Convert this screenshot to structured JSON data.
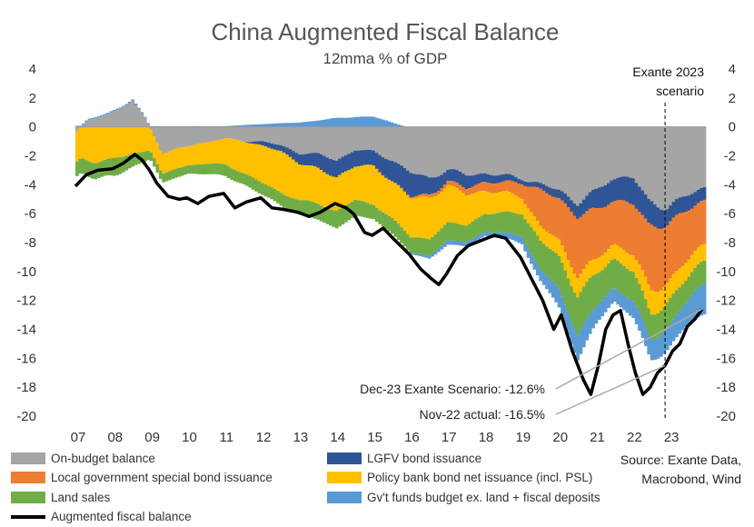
{
  "chart_data": {
    "type": "area",
    "title": "China Augmented Fiscal Balance",
    "subtitle": "12mma % of GDP",
    "ylim": [
      -20,
      4
    ],
    "y_ticks": [
      4,
      2,
      0,
      -2,
      -4,
      -6,
      -8,
      -10,
      -12,
      -14,
      -16,
      -18,
      -20
    ],
    "x_tick_labels": [
      "07",
      "08",
      "09",
      "10",
      "11",
      "12",
      "13",
      "14",
      "15",
      "16",
      "17",
      "18",
      "19",
      "20",
      "21",
      "22",
      "23"
    ],
    "x_start": 2007.0,
    "x_end": 2024.0,
    "scenario_label_line1": "Exante 2023",
    "scenario_label_line2": "scenario",
    "scenario_start": 2022.9,
    "annotations": [
      {
        "text": "Dec-23 Exante Scenario: -12.6%",
        "x": 2023.9,
        "y": -12.6
      },
      {
        "text": "Nov-22 actual: -16.5%",
        "x": 2022.9,
        "y": -16.5
      }
    ],
    "series": [
      {
        "name": "On-budget balance",
        "color": "#A5A5A5",
        "keyframes": [
          [
            2007.0,
            -0.3
          ],
          [
            2007.3,
            0.5
          ],
          [
            2007.8,
            0.8
          ],
          [
            2008.2,
            1.3
          ],
          [
            2008.5,
            1.8
          ],
          [
            2008.8,
            0.8
          ],
          [
            2009.0,
            -0.2
          ],
          [
            2009.3,
            -1.8
          ],
          [
            2009.8,
            -1.5
          ],
          [
            2010.2,
            -1.2
          ],
          [
            2010.6,
            -1.0
          ],
          [
            2011.0,
            -0.8
          ],
          [
            2011.5,
            -1.0
          ],
          [
            2012.0,
            -1.0
          ],
          [
            2012.5,
            -1.3
          ],
          [
            2013.0,
            -1.8
          ],
          [
            2013.5,
            -1.9
          ],
          [
            2014.0,
            -2.3
          ],
          [
            2014.5,
            -1.6
          ],
          [
            2015.0,
            -1.7
          ],
          [
            2015.5,
            -2.3
          ],
          [
            2016.0,
            -3.2
          ],
          [
            2016.5,
            -3.5
          ],
          [
            2017.0,
            -3.0
          ],
          [
            2017.5,
            -3.3
          ],
          [
            2018.0,
            -3.2
          ],
          [
            2018.5,
            -3.4
          ],
          [
            2019.0,
            -3.5
          ],
          [
            2019.5,
            -4.0
          ],
          [
            2020.0,
            -4.4
          ],
          [
            2020.5,
            -5.2
          ],
          [
            2021.0,
            -4.5
          ],
          [
            2021.4,
            -3.6
          ],
          [
            2021.8,
            -3.4
          ],
          [
            2022.0,
            -3.5
          ],
          [
            2022.4,
            -5.2
          ],
          [
            2022.9,
            -5.5
          ],
          [
            2023.3,
            -5.0
          ],
          [
            2023.9,
            -4.2
          ]
        ]
      },
      {
        "name": "LGFV bond issuance",
        "color": "#2F5597",
        "keyframes": [
          [
            2007.0,
            0
          ],
          [
            2011.5,
            0
          ],
          [
            2012.0,
            -0.3
          ],
          [
            2012.5,
            -0.4
          ],
          [
            2013.0,
            -0.7
          ],
          [
            2013.5,
            -1.0
          ],
          [
            2014.0,
            -1.2
          ],
          [
            2014.5,
            -1.1
          ],
          [
            2015.0,
            -1.0
          ],
          [
            2015.5,
            -1.5
          ],
          [
            2016.0,
            -1.6
          ],
          [
            2016.5,
            -1.2
          ],
          [
            2017.0,
            -0.8
          ],
          [
            2017.5,
            -0.9
          ],
          [
            2018.0,
            -0.6
          ],
          [
            2018.5,
            -0.5
          ],
          [
            2019.0,
            -0.3
          ],
          [
            2019.5,
            -0.4
          ],
          [
            2020.0,
            -0.6
          ],
          [
            2020.5,
            -0.9
          ],
          [
            2021.0,
            -1.3
          ],
          [
            2021.5,
            -1.6
          ],
          [
            2022.0,
            -1.8
          ],
          [
            2022.5,
            -1.6
          ],
          [
            2022.9,
            -1.2
          ],
          [
            2023.5,
            -1.0
          ],
          [
            2023.9,
            -0.9
          ]
        ]
      },
      {
        "name": "Local government special bond issuance",
        "color": "#ED7D31",
        "keyframes": [
          [
            2007.0,
            0
          ],
          [
            2015.5,
            0
          ],
          [
            2016.0,
            -0.1
          ],
          [
            2017.0,
            -0.3
          ],
          [
            2018.0,
            -0.6
          ],
          [
            2018.5,
            -0.7
          ],
          [
            2019.0,
            -1.0
          ],
          [
            2019.5,
            -2.5
          ],
          [
            2020.0,
            -3.0
          ],
          [
            2020.5,
            -4.0
          ],
          [
            2021.0,
            -3.5
          ],
          [
            2021.5,
            -3.0
          ],
          [
            2022.0,
            -3.5
          ],
          [
            2022.5,
            -4.5
          ],
          [
            2022.9,
            -4.0
          ],
          [
            2023.5,
            -3.5
          ],
          [
            2023.9,
            -3.0
          ]
        ]
      },
      {
        "name": "Policy bank bond net issuance (incl. PSL)",
        "color": "#FFC000",
        "keyframes": [
          [
            2007.0,
            -2.2
          ],
          [
            2007.5,
            -2.4
          ],
          [
            2008.0,
            -2.2
          ],
          [
            2008.5,
            -1.9
          ],
          [
            2009.0,
            -1.5
          ],
          [
            2009.5,
            -1.4
          ],
          [
            2010.0,
            -1.3
          ],
          [
            2010.5,
            -1.5
          ],
          [
            2011.0,
            -1.8
          ],
          [
            2011.5,
            -2.2
          ],
          [
            2012.0,
            -2.6
          ],
          [
            2012.5,
            -2.8
          ],
          [
            2013.0,
            -2.6
          ],
          [
            2013.5,
            -2.4
          ],
          [
            2014.0,
            -2.3
          ],
          [
            2014.5,
            -2.4
          ],
          [
            2015.0,
            -2.6
          ],
          [
            2015.5,
            -2.6
          ],
          [
            2016.0,
            -2.7
          ],
          [
            2016.5,
            -2.8
          ],
          [
            2017.0,
            -2.6
          ],
          [
            2017.5,
            -2.1
          ],
          [
            2018.0,
            -1.6
          ],
          [
            2018.5,
            -1.4
          ],
          [
            2019.0,
            -1.1
          ],
          [
            2019.5,
            -1.0
          ],
          [
            2020.0,
            -1.1
          ],
          [
            2020.5,
            -1.4
          ],
          [
            2021.0,
            -1.0
          ],
          [
            2021.5,
            -1.0
          ],
          [
            2022.0,
            -1.2
          ],
          [
            2022.5,
            -1.6
          ],
          [
            2022.9,
            -1.4
          ],
          [
            2023.5,
            -1.2
          ],
          [
            2023.9,
            -1.1
          ]
        ]
      },
      {
        "name": "Land sales",
        "color": "#70AD47",
        "keyframes": [
          [
            2007.0,
            -1.0
          ],
          [
            2008.0,
            -1.2
          ],
          [
            2009.0,
            -0.6
          ],
          [
            2010.0,
            -0.6
          ],
          [
            2011.0,
            -0.8
          ],
          [
            2012.0,
            -0.8
          ],
          [
            2013.0,
            -1.0
          ],
          [
            2014.0,
            -1.2
          ],
          [
            2015.0,
            -1.0
          ],
          [
            2016.0,
            -1.1
          ],
          [
            2017.0,
            -1.2
          ],
          [
            2018.0,
            -1.2
          ],
          [
            2019.0,
            -1.6
          ],
          [
            2020.0,
            -2.3
          ],
          [
            2020.5,
            -2.6
          ],
          [
            2021.0,
            -2.3
          ],
          [
            2021.5,
            -2.0
          ],
          [
            2022.0,
            -2.0
          ],
          [
            2022.5,
            -1.8
          ],
          [
            2022.9,
            -1.7
          ],
          [
            2023.5,
            -1.6
          ],
          [
            2023.9,
            -1.6
          ]
        ]
      },
      {
        "name": "Gv't funds budget ex. land + fiscal deposits",
        "color": "#5B9BD5",
        "keyframes": [
          [
            2007.0,
            0.08
          ],
          [
            2008.5,
            0.1
          ],
          [
            2009.0,
            0.05
          ],
          [
            2011.0,
            0.05
          ],
          [
            2012.0,
            0.2
          ],
          [
            2013.0,
            0.3
          ],
          [
            2014.0,
            0.6
          ],
          [
            2014.5,
            0.7
          ],
          [
            2015.0,
            0.7
          ],
          [
            2015.5,
            0.3
          ],
          [
            2016.0,
            -0.1
          ],
          [
            2016.5,
            -0.2
          ],
          [
            2017.0,
            -0.3
          ],
          [
            2017.5,
            -0.3
          ],
          [
            2018.0,
            -0.3
          ],
          [
            2019.0,
            -0.5
          ],
          [
            2020.0,
            -1.2
          ],
          [
            2020.5,
            -1.8
          ],
          [
            2021.0,
            -1.2
          ],
          [
            2021.5,
            -0.9
          ],
          [
            2022.0,
            -1.2
          ],
          [
            2022.5,
            -1.4
          ],
          [
            2022.9,
            -1.5
          ],
          [
            2023.5,
            -1.7
          ],
          [
            2023.9,
            -2.1
          ]
        ]
      }
    ],
    "total_line": {
      "name": "Augmented fiscal balance",
      "color": "#000000",
      "keyframes": [
        [
          2007.0,
          -4.1
        ],
        [
          2007.3,
          -3.3
        ],
        [
          2007.6,
          -3.0
        ],
        [
          2008.0,
          -2.9
        ],
        [
          2008.3,
          -2.5
        ],
        [
          2008.6,
          -1.9
        ],
        [
          2008.8,
          -2.3
        ],
        [
          2009.0,
          -3.0
        ],
        [
          2009.2,
          -3.9
        ],
        [
          2009.5,
          -4.8
        ],
        [
          2009.8,
          -5.0
        ],
        [
          2010.0,
          -4.9
        ],
        [
          2010.3,
          -5.3
        ],
        [
          2010.6,
          -4.8
        ],
        [
          2011.0,
          -4.6
        ],
        [
          2011.3,
          -5.6
        ],
        [
          2011.6,
          -5.2
        ],
        [
          2012.0,
          -4.9
        ],
        [
          2012.3,
          -5.6
        ],
        [
          2012.6,
          -5.7
        ],
        [
          2013.0,
          -5.9
        ],
        [
          2013.3,
          -6.2
        ],
        [
          2013.6,
          -5.9
        ],
        [
          2014.0,
          -5.3
        ],
        [
          2014.3,
          -5.6
        ],
        [
          2014.5,
          -6.0
        ],
        [
          2014.8,
          -7.3
        ],
        [
          2015.0,
          -7.5
        ],
        [
          2015.3,
          -7.0
        ],
        [
          2015.6,
          -7.8
        ],
        [
          2016.0,
          -8.8
        ],
        [
          2016.3,
          -9.8
        ],
        [
          2016.6,
          -10.5
        ],
        [
          2016.8,
          -10.9
        ],
        [
          2017.0,
          -10.2
        ],
        [
          2017.3,
          -8.9
        ],
        [
          2017.6,
          -8.2
        ],
        [
          2018.0,
          -7.8
        ],
        [
          2018.3,
          -7.5
        ],
        [
          2018.6,
          -7.7
        ],
        [
          2019.0,
          -9.0
        ],
        [
          2019.3,
          -10.5
        ],
        [
          2019.6,
          -12.0
        ],
        [
          2019.9,
          -14.0
        ],
        [
          2020.1,
          -13.0
        ],
        [
          2020.4,
          -15.5
        ],
        [
          2020.7,
          -17.5
        ],
        [
          2020.9,
          -18.5
        ],
        [
          2021.1,
          -16.5
        ],
        [
          2021.3,
          -14.0
        ],
        [
          2021.5,
          -13.0
        ],
        [
          2021.7,
          -12.7
        ],
        [
          2021.9,
          -15.0
        ],
        [
          2022.1,
          -17.0
        ],
        [
          2022.3,
          -18.5
        ],
        [
          2022.5,
          -18.0
        ],
        [
          2022.7,
          -17.0
        ],
        [
          2022.9,
          -16.5
        ],
        [
          2023.1,
          -15.5
        ],
        [
          2023.3,
          -15.0
        ],
        [
          2023.5,
          -13.8
        ],
        [
          2023.7,
          -13.3
        ],
        [
          2023.9,
          -12.6
        ]
      ]
    }
  },
  "legend": [
    {
      "label": "On-budget balance",
      "color": "#A5A5A5",
      "kind": "box"
    },
    {
      "label": "LGFV bond issuance",
      "color": "#2F5597",
      "kind": "box"
    },
    {
      "label": "Local government special bond issuance",
      "color": "#ED7D31",
      "kind": "box"
    },
    {
      "label": "Policy bank bond net issuance (incl. PSL)",
      "color": "#FFC000",
      "kind": "box"
    },
    {
      "label": "Land sales",
      "color": "#70AD47",
      "kind": "box"
    },
    {
      "label": "Gv't funds budget ex. land + fiscal deposits",
      "color": "#5B9BD5",
      "kind": "box"
    },
    {
      "label": "Augmented fiscal balance",
      "color": "#000000",
      "kind": "line"
    }
  ],
  "source": {
    "line1": "Source: Exante Data,",
    "line2": "Macrobond, Wind"
  }
}
